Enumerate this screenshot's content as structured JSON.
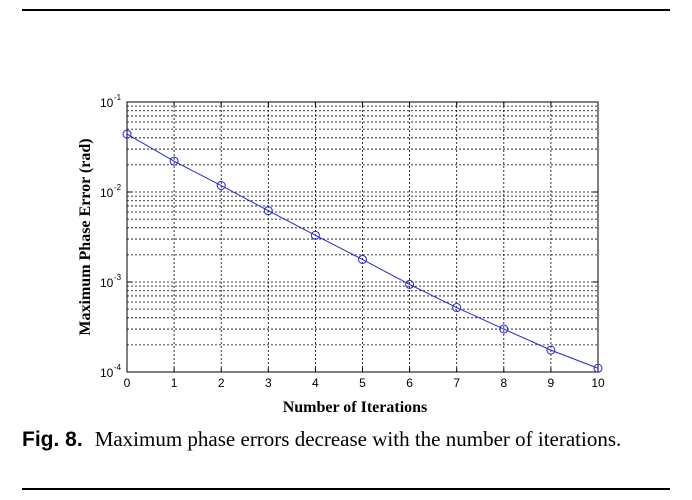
{
  "figure": {
    "caption_label": "Fig. 8.",
    "caption_text": "Maximum phase errors decrease with the number of iterations."
  },
  "chart_data": {
    "type": "line",
    "xlabel": "Number of Iterations",
    "ylabel": "Maximum Phase Error (rad)",
    "x": [
      0,
      1,
      2,
      3,
      4,
      5,
      6,
      7,
      8,
      9,
      10
    ],
    "series": [
      {
        "values": [
          0.044,
          0.022,
          0.0118,
          0.0062,
          0.0033,
          0.00178,
          0.00094,
          0.00052,
          0.0003,
          0.000175,
          0.00011
        ]
      }
    ],
    "xlim": [
      0,
      10
    ],
    "ylim": [
      0.0001,
      0.1
    ],
    "yscale": "log",
    "x_ticks": [
      "0",
      "1",
      "2",
      "3",
      "4",
      "5",
      "6",
      "7",
      "8",
      "9",
      "10"
    ],
    "y_ticks": [
      {
        "value": 0.0001,
        "exp": "-4"
      },
      {
        "value": 0.001,
        "exp": "-3"
      },
      {
        "value": 0.01,
        "exp": "-2"
      },
      {
        "value": 0.1,
        "exp": "-1"
      }
    ],
    "tick_base": "10",
    "grid": true,
    "marker": "circle",
    "line_color": "#2626d9"
  }
}
